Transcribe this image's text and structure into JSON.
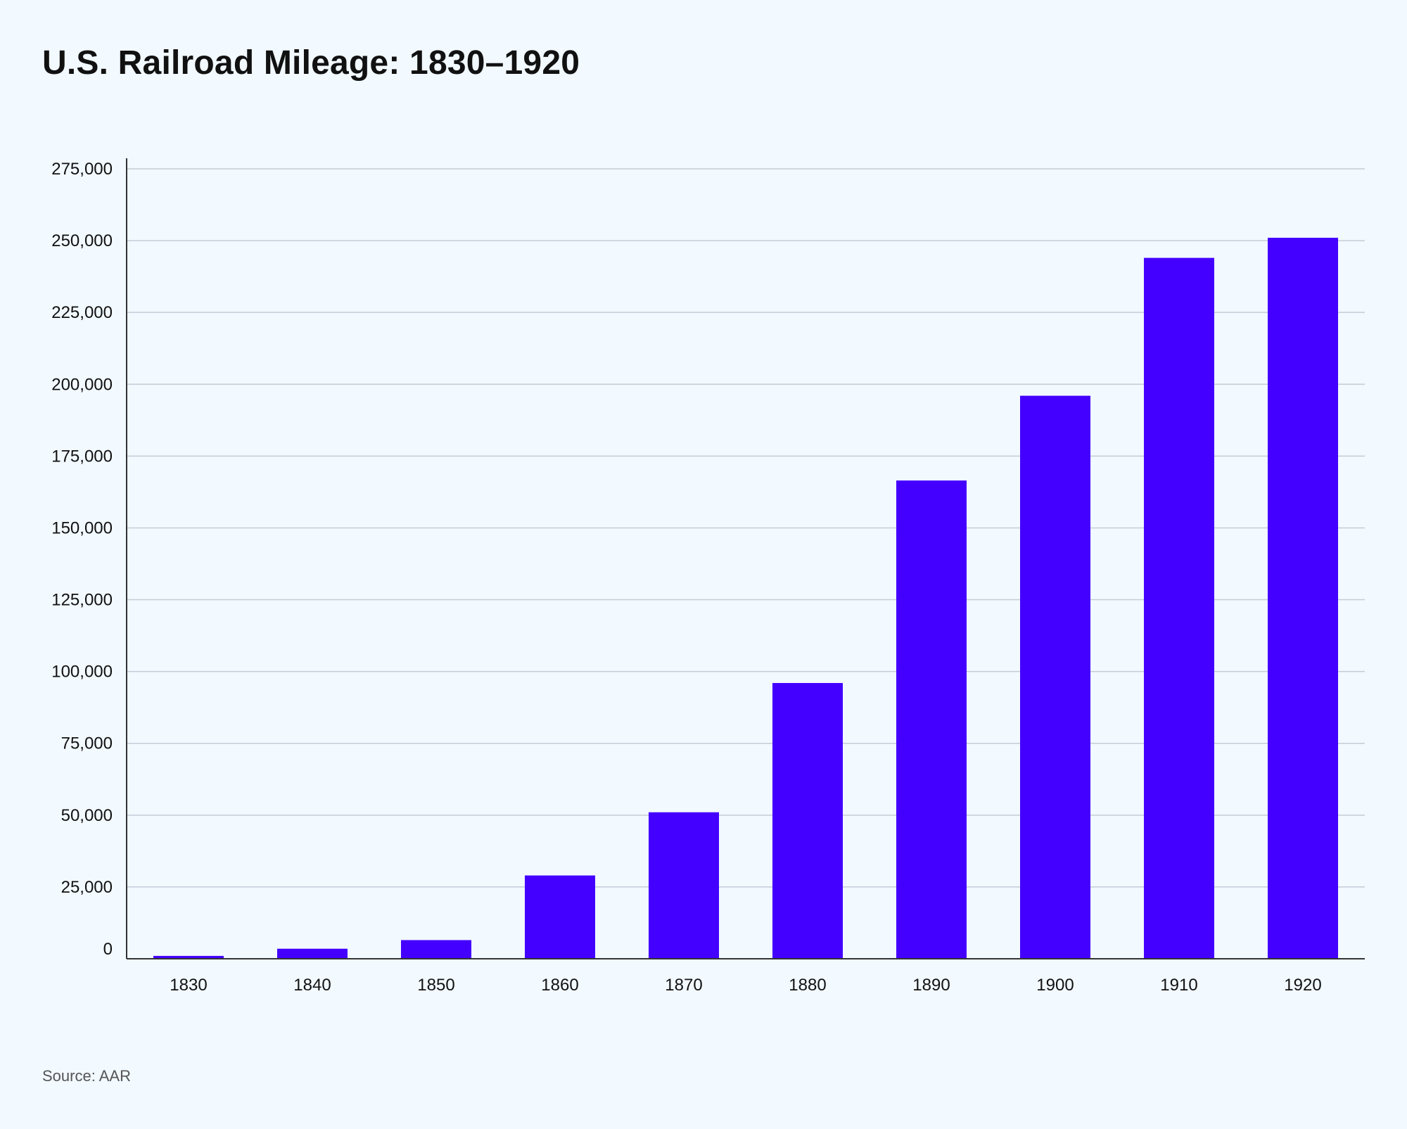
{
  "title": "U.S. Railroad Mileage: 1830–1920",
  "source": "Source: AAR",
  "colors": {
    "bar": "#4400ff",
    "grid": "#c5ccd6",
    "axis": "#333333",
    "background": "#f2f9ff"
  },
  "chart_data": {
    "type": "bar",
    "categories": [
      "1830",
      "1840",
      "1850",
      "1860",
      "1870",
      "1880",
      "1890",
      "1900",
      "1910",
      "1920"
    ],
    "values": [
      1000,
      3500,
      6500,
      29000,
      51000,
      96000,
      166500,
      196000,
      244000,
      251000
    ],
    "ylim": [
      0,
      275000
    ],
    "yticks": [
      0,
      25000,
      50000,
      75000,
      100000,
      125000,
      150000,
      175000,
      200000,
      225000,
      250000,
      275000
    ],
    "ytick_labels": [
      "0",
      "25,000",
      "50,000",
      "75,000",
      "100,000",
      "125,000",
      "150,000",
      "175,000",
      "200,000",
      "225,000",
      "250,000",
      "275,000"
    ],
    "grid": true,
    "xlabel": "",
    "ylabel": ""
  }
}
